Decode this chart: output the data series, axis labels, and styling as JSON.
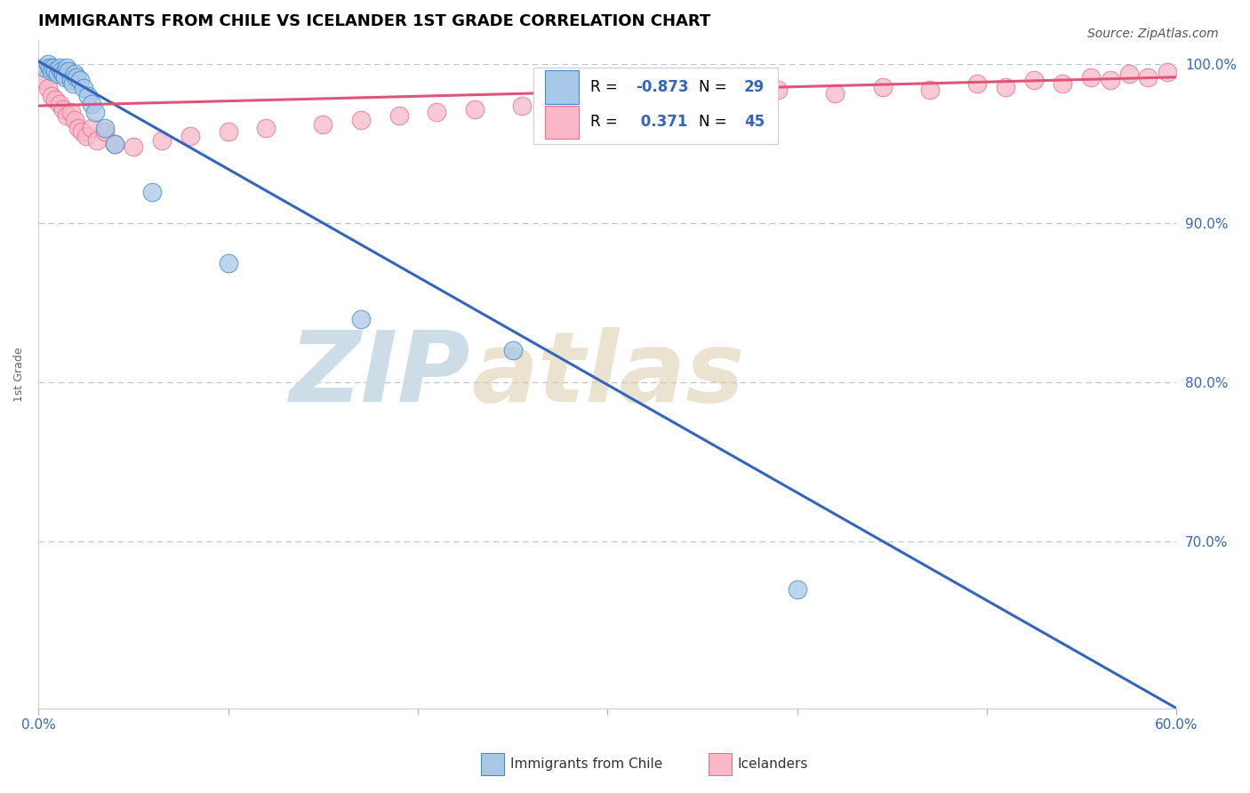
{
  "title": "IMMIGRANTS FROM CHILE VS ICELANDER 1ST GRADE CORRELATION CHART",
  "source": "Source: ZipAtlas.com",
  "ylabel": "1st Grade",
  "xlim": [
    0.0,
    0.6
  ],
  "ylim": [
    0.595,
    1.015
  ],
  "yticks": [
    0.7,
    0.8,
    0.9,
    1.0
  ],
  "ytick_labels": [
    "70.0%",
    "80.0%",
    "90.0%",
    "100.0%"
  ],
  "xticks": [
    0.0,
    0.1,
    0.2,
    0.3,
    0.4,
    0.5,
    0.6
  ],
  "xtick_labels": [
    "0.0%",
    "",
    "",
    "",
    "",
    "",
    "60.0%"
  ],
  "blue_R": -0.873,
  "blue_N": 29,
  "pink_R": 0.371,
  "pink_N": 45,
  "blue_color": "#a8c8e8",
  "pink_color": "#f8b8c8",
  "blue_edge_color": "#4488cc",
  "pink_edge_color": "#e87090",
  "blue_line_color": "#3366bb",
  "pink_line_color": "#dd5577",
  "watermark_color": "#ccdde8",
  "blue_scatter_x": [
    0.003,
    0.005,
    0.006,
    0.007,
    0.008,
    0.009,
    0.01,
    0.011,
    0.012,
    0.013,
    0.014,
    0.015,
    0.016,
    0.017,
    0.018,
    0.019,
    0.02,
    0.022,
    0.024,
    0.026,
    0.028,
    0.03,
    0.035,
    0.04,
    0.06,
    0.1,
    0.17,
    0.25,
    0.4
  ],
  "blue_scatter_y": [
    0.998,
    1.0,
    0.998,
    0.996,
    0.998,
    0.996,
    0.994,
    0.998,
    0.996,
    0.994,
    0.992,
    0.998,
    0.996,
    0.99,
    0.988,
    0.994,
    0.992,
    0.99,
    0.985,
    0.98,
    0.975,
    0.97,
    0.96,
    0.95,
    0.92,
    0.875,
    0.84,
    0.82,
    0.67
  ],
  "pink_scatter_x": [
    0.003,
    0.005,
    0.007,
    0.009,
    0.011,
    0.013,
    0.015,
    0.017,
    0.019,
    0.021,
    0.023,
    0.025,
    0.028,
    0.031,
    0.035,
    0.04,
    0.05,
    0.065,
    0.08,
    0.1,
    0.12,
    0.15,
    0.17,
    0.19,
    0.21,
    0.23,
    0.255,
    0.28,
    0.3,
    0.32,
    0.34,
    0.36,
    0.39,
    0.42,
    0.445,
    0.47,
    0.495,
    0.51,
    0.525,
    0.54,
    0.555,
    0.565,
    0.575,
    0.585,
    0.595
  ],
  "pink_scatter_y": [
    0.99,
    0.985,
    0.98,
    0.978,
    0.975,
    0.972,
    0.968,
    0.97,
    0.965,
    0.96,
    0.958,
    0.955,
    0.96,
    0.952,
    0.958,
    0.95,
    0.948,
    0.952,
    0.955,
    0.958,
    0.96,
    0.962,
    0.965,
    0.968,
    0.97,
    0.972,
    0.974,
    0.975,
    0.978,
    0.98,
    0.978,
    0.982,
    0.984,
    0.982,
    0.986,
    0.984,
    0.988,
    0.986,
    0.99,
    0.988,
    0.992,
    0.99,
    0.994,
    0.992,
    0.995
  ],
  "blue_line_x0": 0.0,
  "blue_line_y0": 1.002,
  "blue_line_x1": 0.6,
  "blue_line_y1": 0.595,
  "pink_line_x0": 0.0,
  "pink_line_y0": 0.974,
  "pink_line_x1": 0.6,
  "pink_line_y1": 0.992
}
